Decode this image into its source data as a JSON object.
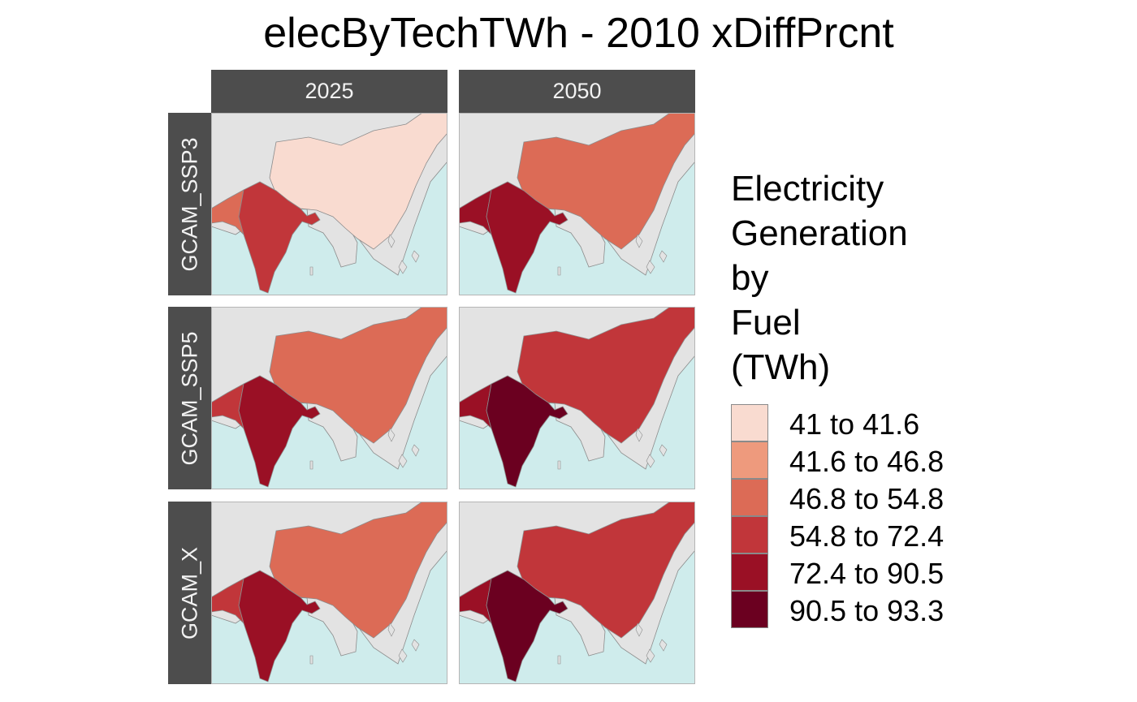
{
  "title": "elecByTechTWh - 2010 xDiffPrcnt",
  "columns": [
    "2025",
    "2050"
  ],
  "rows": [
    "GCAM_SSP3",
    "GCAM_SSP5",
    "GCAM_X"
  ],
  "legend": {
    "title_lines": [
      "Electricity",
      "Generation",
      "by",
      "Fuel",
      "(TWh)"
    ],
    "items": [
      {
        "label": "41 to 41.6",
        "color": "#f9dbd0"
      },
      {
        "label": "41.6 to 46.8",
        "color": "#ee9a7d"
      },
      {
        "label": "46.8 to 54.8",
        "color": "#dc6b56"
      },
      {
        "label": "54.8 to 72.4",
        "color": "#c1363a"
      },
      {
        "label": "72.4 to 90.5",
        "color": "#9a1025"
      },
      {
        "label": "90.5 to 93.3",
        "color": "#6b0020"
      }
    ]
  },
  "colors": {
    "ocean": "#cfecec",
    "land": "#e3e3e3",
    "border": "#8c8c8c",
    "strip": "#4d4d4d",
    "strip_text": "#f2f2f2"
  },
  "map_data": [
    {
      "row": "GCAM_SSP3",
      "column": "2025",
      "China": "41 to 41.6",
      "India": "54.8 to 72.4",
      "Pakistan": "46.8 to 54.8"
    },
    {
      "row": "GCAM_SSP3",
      "column": "2050",
      "China": "46.8 to 54.8",
      "India": "72.4 to 90.5",
      "Pakistan": "72.4 to 90.5"
    },
    {
      "row": "GCAM_SSP5",
      "column": "2025",
      "China": "46.8 to 54.8",
      "India": "72.4 to 90.5",
      "Pakistan": "54.8 to 72.4"
    },
    {
      "row": "GCAM_SSP5",
      "column": "2050",
      "China": "54.8 to 72.4",
      "India": "90.5 to 93.3",
      "Pakistan": "72.4 to 90.5"
    },
    {
      "row": "GCAM_X",
      "column": "2025",
      "China": "46.8 to 54.8",
      "India": "72.4 to 90.5",
      "Pakistan": "54.8 to 72.4"
    },
    {
      "row": "GCAM_X",
      "column": "2050",
      "China": "54.8 to 72.4",
      "India": "90.5 to 93.3",
      "Pakistan": "72.4 to 90.5"
    }
  ]
}
